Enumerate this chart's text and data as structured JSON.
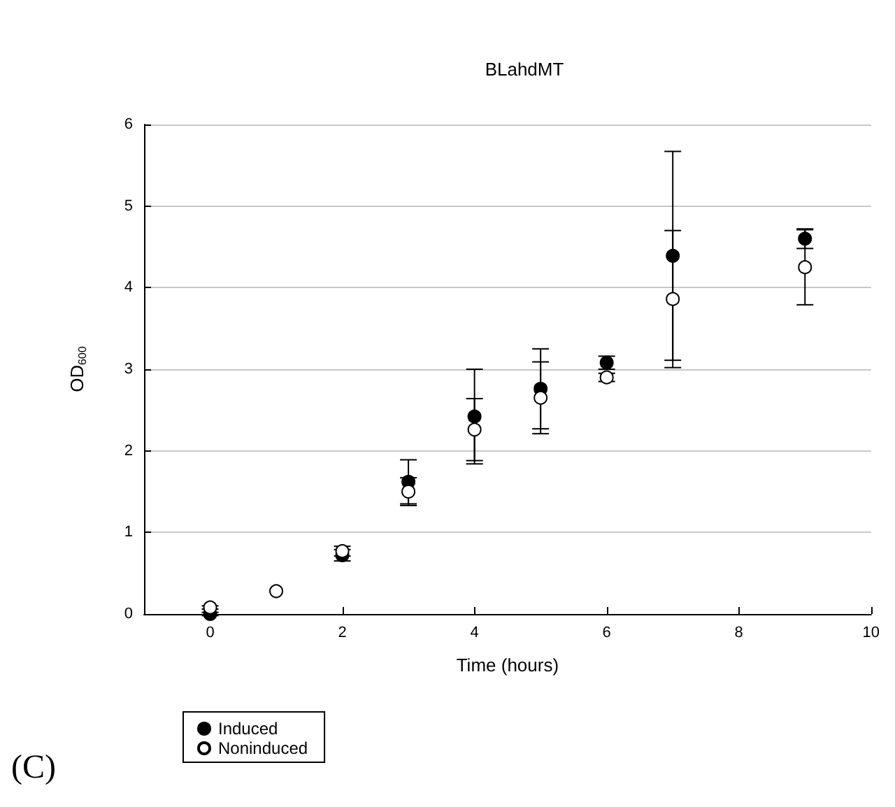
{
  "chart_data": {
    "type": "scatter",
    "title": "BLahdMT",
    "xlabel": "Time (hours)",
    "ylabel": "OD$_{600}$",
    "annotations": [
      "(C)"
    ],
    "x": [
      0,
      1,
      2,
      3,
      4,
      5,
      6,
      7,
      9
    ],
    "series": [
      {
        "name": "Induced",
        "color": "#000000",
        "values": [
          0.0,
          null,
          0.72,
          1.62,
          2.42,
          2.76,
          3.08,
          4.39,
          4.6
        ],
        "errors": [
          0.02,
          null,
          0.07,
          0.27,
          0.58,
          0.49,
          0.08,
          1.28,
          0.12
        ]
      },
      {
        "name": "Noninduced",
        "color": "#ffffff",
        "values": [
          0.08,
          0.28,
          0.77,
          1.5,
          2.26,
          2.65,
          2.9,
          3.86,
          4.25
        ],
        "errors": [
          0.02,
          null,
          0.06,
          0.17,
          0.38,
          0.44,
          0.05,
          0.84,
          0.46
        ]
      }
    ],
    "xlim": [
      -1,
      10
    ],
    "xticks": [
      0,
      2,
      4,
      6,
      8,
      10
    ],
    "ylim": [
      0,
      6
    ],
    "yticks": [
      0,
      1,
      2,
      3,
      4,
      5,
      6
    ],
    "grid": "y",
    "legend": "bottom left",
    "marker": "circle"
  }
}
